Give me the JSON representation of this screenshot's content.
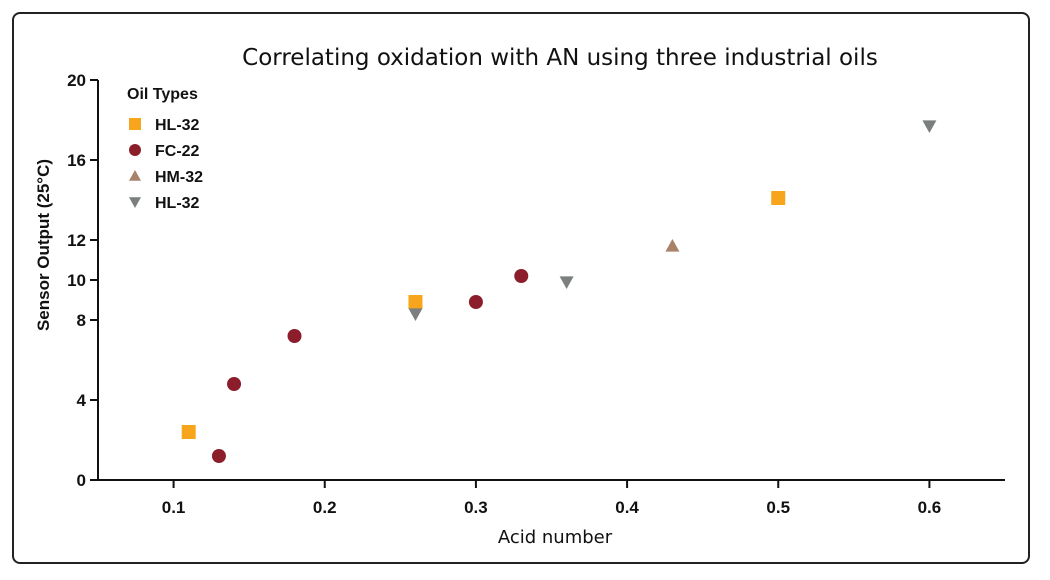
{
  "chart_data": {
    "type": "scatter",
    "title": "Correlating oxidation with AN using three industrial oils",
    "xlabel": "Acid number",
    "ylabel": "Sensor Output (25°C)",
    "xlim": [
      0.05,
      0.65
    ],
    "ylim": [
      0,
      20
    ],
    "xticks": [
      0.1,
      0.2,
      0.3,
      0.4,
      0.5,
      0.6
    ],
    "yticks": [
      0,
      4,
      8,
      10,
      12,
      16,
      20
    ],
    "xtick_labels": [
      "0.1",
      "0.2",
      "0.3",
      "0.4",
      "0.5",
      "0.6"
    ],
    "ytick_labels": [
      "0",
      "4",
      "8",
      "10",
      "12",
      "16",
      "20"
    ],
    "grid": false,
    "legend_title": "Oil Types",
    "legend_position": "top-left",
    "series": [
      {
        "name": "HL-32",
        "marker": "square",
        "color": "#F7A51C",
        "points": [
          {
            "x": 0.11,
            "y": 2.4
          },
          {
            "x": 0.26,
            "y": 8.9
          },
          {
            "x": 0.5,
            "y": 14.1
          }
        ]
      },
      {
        "name": "FC-22",
        "marker": "circle",
        "color": "#8B1E2A",
        "points": [
          {
            "x": 0.13,
            "y": 1.2
          },
          {
            "x": 0.14,
            "y": 4.8
          },
          {
            "x": 0.18,
            "y": 7.2
          },
          {
            "x": 0.3,
            "y": 8.9
          },
          {
            "x": 0.33,
            "y": 10.2
          }
        ]
      },
      {
        "name": "HM-32",
        "marker": "triangle-up",
        "color": "#A8836A",
        "points": [
          {
            "x": 0.43,
            "y": 11.7
          }
        ]
      },
      {
        "name": "HL-32",
        "marker": "triangle-down",
        "color": "#7B7F7F",
        "points": [
          {
            "x": 0.26,
            "y": 8.3
          },
          {
            "x": 0.36,
            "y": 9.9
          },
          {
            "x": 0.6,
            "y": 17.7
          }
        ]
      }
    ]
  }
}
